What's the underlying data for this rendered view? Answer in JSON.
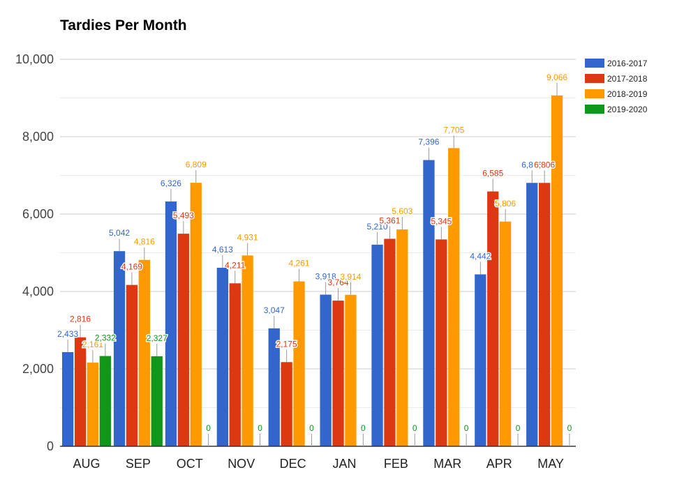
{
  "chart_data": {
    "type": "bar",
    "title": "Tardies Per Month",
    "xlabel": "",
    "ylabel": "",
    "categories": [
      "AUG",
      "SEP",
      "OCT",
      "NOV",
      "DEC",
      "JAN",
      "FEB",
      "MAR",
      "APR",
      "MAY"
    ],
    "series": [
      {
        "name": "2016-2017",
        "color": "#3366cc",
        "values": [
          2433,
          5042,
          6326,
          4613,
          3047,
          3918,
          5210,
          7396,
          4442,
          6806
        ]
      },
      {
        "name": "2017-2018",
        "color": "#dc3912",
        "values": [
          2816,
          4169,
          5493,
          4211,
          2175,
          3764,
          5361,
          5345,
          6585,
          6806
        ]
      },
      {
        "name": "2018-2019",
        "color": "#ff9900",
        "values": [
          2161,
          4816,
          6809,
          4931,
          4261,
          3914,
          5603,
          7705,
          5806,
          9066
        ]
      },
      {
        "name": "2019-2020",
        "color": "#109618",
        "values": [
          2332,
          2327,
          0,
          0,
          0,
          0,
          0,
          0,
          0,
          0
        ]
      }
    ],
    "ylim": [
      0,
      10000
    ],
    "yticks": [
      0,
      2000,
      4000,
      6000,
      8000,
      10000
    ],
    "ytick_labels": [
      "0",
      "2,000",
      "4,000",
      "6,000",
      "8,000",
      "10,000"
    ],
    "grid": true,
    "minor_grid": true,
    "legend_position": "right"
  }
}
